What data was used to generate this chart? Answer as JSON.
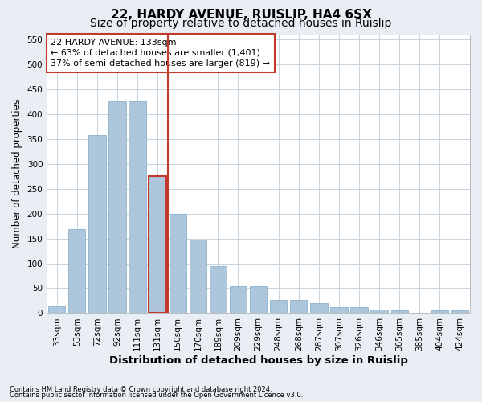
{
  "title1": "22, HARDY AVENUE, RUISLIP, HA4 6SX",
  "title2": "Size of property relative to detached houses in Ruislip",
  "xlabel": "Distribution of detached houses by size in Ruislip",
  "ylabel": "Number of detached properties",
  "categories": [
    "33sqm",
    "53sqm",
    "72sqm",
    "92sqm",
    "111sqm",
    "131sqm",
    "150sqm",
    "170sqm",
    "189sqm",
    "209sqm",
    "229sqm",
    "248sqm",
    "268sqm",
    "287sqm",
    "307sqm",
    "326sqm",
    "346sqm",
    "365sqm",
    "385sqm",
    "404sqm",
    "424sqm"
  ],
  "values": [
    13,
    168,
    357,
    425,
    425,
    275,
    200,
    148,
    95,
    54,
    54,
    27,
    27,
    20,
    12,
    12,
    7,
    5,
    0,
    5,
    5
  ],
  "bar_color": "#aec6dc",
  "bar_edge_color": "#7aaac8",
  "highlight_bar_edge_color": "#c0392b",
  "ylim": [
    0,
    560
  ],
  "yticks": [
    0,
    50,
    100,
    150,
    200,
    250,
    300,
    350,
    400,
    450,
    500,
    550
  ],
  "annotation_line1": "22 HARDY AVENUE: 133sqm",
  "annotation_line2": "← 63% of detached houses are smaller (1,401)",
  "annotation_line3": "37% of semi-detached houses are larger (819) →",
  "footnote1": "Contains HM Land Registry data © Crown copyright and database right 2024.",
  "footnote2": "Contains public sector information licensed under the Open Government Licence v3.0.",
  "bg_color": "#e8eef4",
  "plot_bg_color": "#ffffff",
  "grid_color": "#c0ccd8",
  "title1_fontsize": 11,
  "title2_fontsize": 10,
  "tick_fontsize": 7.5,
  "ylabel_fontsize": 8.5,
  "xlabel_fontsize": 9.5,
  "footnote_fontsize": 6,
  "annotation_fontsize": 8,
  "highlight_bar_index": 5,
  "vline_x": 5.5
}
